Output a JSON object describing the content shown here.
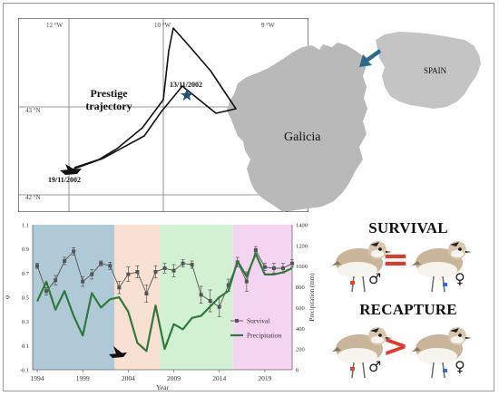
{
  "map": {
    "lon_labels": [
      "12 °W",
      "10 °W",
      "9 °W"
    ],
    "lat_labels": [
      "43 °N",
      "42 °N"
    ],
    "trajectory_label": "Prestige trajectory",
    "date_start": "13/11/2002",
    "date_end": "19/11/2002",
    "region_label": "Galicia",
    "country_label": "SPAIN"
  },
  "chart_data": {
    "type": "line",
    "xlabel": "Year",
    "ylabel_left": "φ",
    "ylabel_right": "Precipitation (mm)",
    "x_ticks": [
      1994,
      1999,
      2004,
      2009,
      2014,
      2019
    ],
    "y_left_ticks": [
      "1.1",
      "0.9",
      "0.7",
      "0.5",
      "0.3",
      "0.1",
      "-0.1"
    ],
    "y_right_ticks": [
      "0",
      "200",
      "400",
      "600",
      "800",
      "1000",
      "1200",
      "1400"
    ],
    "ylim_left": [
      -0.1,
      1.1
    ],
    "ylim_right": [
      0,
      1400
    ],
    "xlim": [
      1993.5,
      2022
    ],
    "periods": [
      {
        "start": 1993.5,
        "end": 2002.5,
        "color": "#b0c9d6"
      },
      {
        "start": 2002.5,
        "end": 2007.5,
        "color": "#f8e0d2"
      },
      {
        "start": 2007.5,
        "end": 2015.5,
        "color": "#d2f0d2"
      },
      {
        "start": 2015.5,
        "end": 2022,
        "color": "#f3d4f1"
      }
    ],
    "series": [
      {
        "name": "Survival",
        "color": "#555555",
        "x": [
          1994,
          1995,
          1996,
          1997,
          1998,
          1999,
          2000,
          2001,
          2002,
          2003,
          2004,
          2005,
          2006,
          2007,
          2008,
          2009,
          2010,
          2011,
          2012,
          2013,
          2014,
          2015,
          2016,
          2017,
          2018,
          2019,
          2020,
          2021,
          2022
        ],
        "y": [
          0.76,
          0.55,
          0.64,
          0.8,
          0.88,
          0.63,
          0.69,
          0.78,
          0.76,
          0.58,
          0.69,
          0.71,
          0.53,
          0.71,
          0.74,
          0.72,
          0.78,
          0.77,
          0.52,
          0.47,
          0.42,
          0.6,
          0.79,
          0.63,
          0.89,
          0.75,
          0.74,
          0.74,
          0.78
        ],
        "err": [
          0.02,
          0.03,
          0.04,
          0.03,
          0.03,
          0.04,
          0.04,
          0.02,
          0.03,
          0.05,
          0.06,
          0.05,
          0.07,
          0.05,
          0.04,
          0.05,
          0.03,
          0.03,
          0.07,
          0.09,
          0.08,
          0.05,
          0.04,
          0.08,
          0.03,
          0.03,
          0.04,
          0.04,
          0.03
        ]
      },
      {
        "name": "Precipitation",
        "color": "#2f7a3b",
        "x": [
          1994,
          1995,
          1996,
          1997,
          1998,
          1999,
          2000,
          2001,
          2002,
          2003,
          2004,
          2005,
          2006,
          2007,
          2008,
          2009,
          2010,
          2011,
          2012,
          2013,
          2014,
          2015,
          2016,
          2017,
          2018,
          2019,
          2020,
          2021,
          2022
        ],
        "y": [
          660,
          850,
          580,
          760,
          520,
          330,
          740,
          600,
          680,
          700,
          560,
          260,
          180,
          620,
          200,
          440,
          390,
          500,
          520,
          610,
          700,
          760,
          1050,
          900,
          1120,
          920,
          920,
          940,
          980
        ]
      }
    ],
    "legend": [
      "Survival",
      "Precipitation"
    ]
  },
  "comparisons": {
    "survival_title": "SURVIVAL",
    "survival_relation": "=",
    "recapture_title": "RECAPTURE",
    "recapture_relation": ">",
    "male_symbol": "♂",
    "female_symbol": "♀"
  }
}
